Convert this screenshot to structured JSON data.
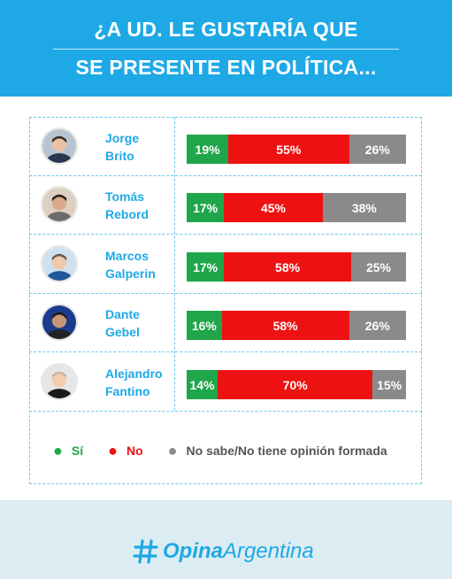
{
  "header": {
    "title_line1": "¿A UD. LE GUSTARÍA QUE",
    "title_line2": "SE PRESENTE EN POLÍTICA..."
  },
  "colors": {
    "header_bg": "#1ea9e6",
    "si": "#1fa64a",
    "no": "#ee1111",
    "no_sabe": "#8a8a8a",
    "footer_bg": "#dcecf3"
  },
  "chart_data": {
    "type": "bar",
    "stacked": true,
    "orientation": "horizontal",
    "categories": [
      "Jorge Brito",
      "Tomás Rebord",
      "Marcos Galperin",
      "Dante Gebel",
      "Alejandro Fantino"
    ],
    "series": [
      {
        "name": "Sí",
        "values": [
          19,
          17,
          17,
          16,
          14
        ],
        "labels": [
          "19%",
          "17%",
          "17%",
          "16%",
          "14%"
        ]
      },
      {
        "name": "No",
        "values": [
          55,
          45,
          58,
          58,
          70
        ],
        "labels": [
          "55%",
          "45%",
          "58%",
          "58%",
          "70%"
        ]
      },
      {
        "name": "No sabe/No tiene opinión formada",
        "values": [
          26,
          38,
          25,
          26,
          15
        ],
        "labels": [
          "26%",
          "38%",
          "25%",
          "26%",
          "15%"
        ]
      }
    ],
    "legend_position": "bottom"
  },
  "rows": [
    {
      "name_line1": "Jorge",
      "name_line2": "Brito",
      "avatar": "person-photo-icon"
    },
    {
      "name_line1": "Tomás",
      "name_line2": "Rebord",
      "avatar": "person-photo-icon"
    },
    {
      "name_line1": "Marcos",
      "name_line2": "Galperin",
      "avatar": "person-photo-icon"
    },
    {
      "name_line1": "Dante",
      "name_line2": "Gebel",
      "avatar": "person-photo-icon"
    },
    {
      "name_line1": "Alejandro",
      "name_line2": "Fantino",
      "avatar": "person-photo-icon"
    }
  ],
  "legend": {
    "si": "Sí",
    "no": "No",
    "ns": "No sabe/No tiene opinión formada",
    "bullet": "●"
  },
  "footer": {
    "logo_bold": "Opina",
    "logo_light": "Argentina",
    "logo_icon": "hashtag-icon"
  }
}
